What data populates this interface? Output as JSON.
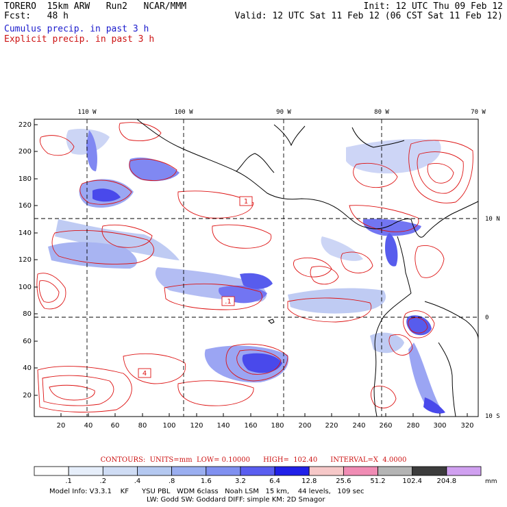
{
  "header": {
    "line1_left": "TORERO  15km ARW   Run2   NCAR/MMM",
    "line2_left": "Fcst:   48 h",
    "line1_right": "Init: 12 UTC Thu 09 Feb 12",
    "line2_right": "Valid: 12 UTC Sat 11 Feb 12 (06 CST Sat 11 Feb 12)"
  },
  "legend": {
    "cumulus": "Cumulus precip. in past 3 h",
    "explicit": "Explicit precip. in past 3 h",
    "cumulus_color": "#1a1acc",
    "explicit_color": "#cc1111"
  },
  "map": {
    "top_lon_labels": [
      "110 W",
      "100 W",
      "90 W",
      "80 W",
      "70 W"
    ],
    "right_lat_labels": [
      "10 N",
      "0",
      "10 S"
    ],
    "y_ticks": [
      "220",
      "200",
      "180",
      "160",
      "140",
      "120",
      "100",
      "80",
      "60",
      "40",
      "20"
    ],
    "x_ticks": [
      "20",
      "40",
      "60",
      "80",
      "100",
      "120",
      "140",
      "160",
      "180",
      "200",
      "220",
      "240",
      "260",
      "280",
      "300",
      "320"
    ],
    "contour_labels": [
      "1",
      ".1",
      "4"
    ]
  },
  "contour_info": "CONTOURS:  UNITS=mm  LOW= 0.10000      HIGH=  102.40      INTERVAL=X  4.0000",
  "colorbar": {
    "labels": [
      ".1",
      ".2",
      ".4",
      ".8",
      "1.6",
      "3.2",
      "6.4",
      "12.8",
      "25.6",
      "51.2",
      "102.4",
      "204.8"
    ],
    "colors": [
      "#ffffff",
      "#e6eefa",
      "#cfdcf4",
      "#b4c8f0",
      "#9aaef0",
      "#8090f0",
      "#5a5ef0",
      "#2020e8",
      "#f6c8c8",
      "#f08cb4",
      "#b4b4b4",
      "#3c3c3c",
      "#d0a0f0"
    ],
    "unit": "mm"
  },
  "footer": {
    "line1": "Model Info: V3.3.1    KF      YSU PBL   WDM 6class   Noah LSM   15 km,    44 levels,   109 sec",
    "line2": "LW: Godd SW: Goddard DIFF: simple KM: 2D Smagor"
  }
}
